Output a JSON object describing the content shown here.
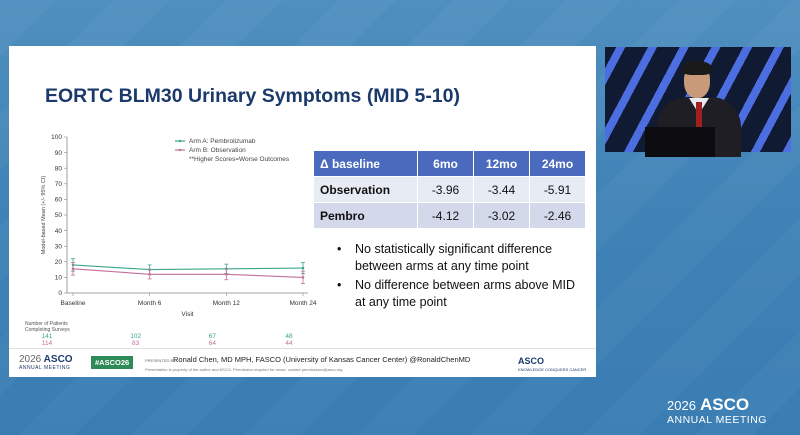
{
  "slide": {
    "title": "EORTC BLM30 Urinary Symptoms (MID 5-10)",
    "table": {
      "headers": [
        "Δ baseline",
        "6mo",
        "12mo",
        "24mo"
      ],
      "rows": [
        {
          "label": "Observation",
          "values": [
            "-3.96",
            "-3.44",
            "-5.91"
          ]
        },
        {
          "label": "Pembro",
          "values": [
            "-4.12",
            "-3.02",
            "-2.46"
          ]
        }
      ]
    },
    "bullets": [
      "No statistically significant difference between arms at any time point",
      "No difference between arms above MID at any time point"
    ],
    "footer": {
      "asco_year": "2026",
      "asco_name": "ASCO",
      "asco_sub": "ANNUAL MEETING",
      "hashtag": "#ASCO26",
      "presenter_prefix": "PRESENTED BY:",
      "presenter": "Ronald Chen, MD MPH, FASCO (University of Kansas Cancer Center) @RonaldChenMD",
      "copyright": "Presentation is property of the author and ASCO. Permission required for reuse; contact permissions@asco.org",
      "asco_right": "ASCO",
      "asco_right_sub": "KNOWLEDGE CONQUERS CANCER"
    }
  },
  "chart_data": {
    "type": "line",
    "title": "",
    "xlabel": "Visit",
    "ylabel": "Model-based Mean (+/- 95% CI)",
    "categories": [
      "Baseline",
      "Month 6",
      "Month 12",
      "Month 24"
    ],
    "ylim": [
      0,
      100
    ],
    "yticks": [
      0,
      10,
      20,
      30,
      40,
      50,
      60,
      70,
      80,
      90,
      100
    ],
    "series": [
      {
        "name": "Arm A: Pembrolizumab",
        "color": "#3aa68a",
        "values": [
          18,
          15,
          15.5,
          16
        ],
        "ci": [
          4,
          3,
          3,
          3.5
        ]
      },
      {
        "name": "Arm B: Observation",
        "color": "#c0709a",
        "values": [
          15.5,
          12,
          12,
          10
        ],
        "ci": [
          4,
          3,
          3.5,
          4
        ]
      }
    ],
    "legend_note": "**Higher Scores=Worse Outcomes",
    "legend_position": "top-right",
    "patients_label": [
      "Number of Patients",
      "Completing Surveys"
    ],
    "patients_armA": [
      "141",
      "102",
      "67",
      "48"
    ],
    "patients_armB": [
      "114",
      "83",
      "64",
      "44"
    ]
  },
  "meeting_logo": {
    "year": "2026",
    "name": "ASCO",
    "sub": "ANNUAL MEETING"
  }
}
